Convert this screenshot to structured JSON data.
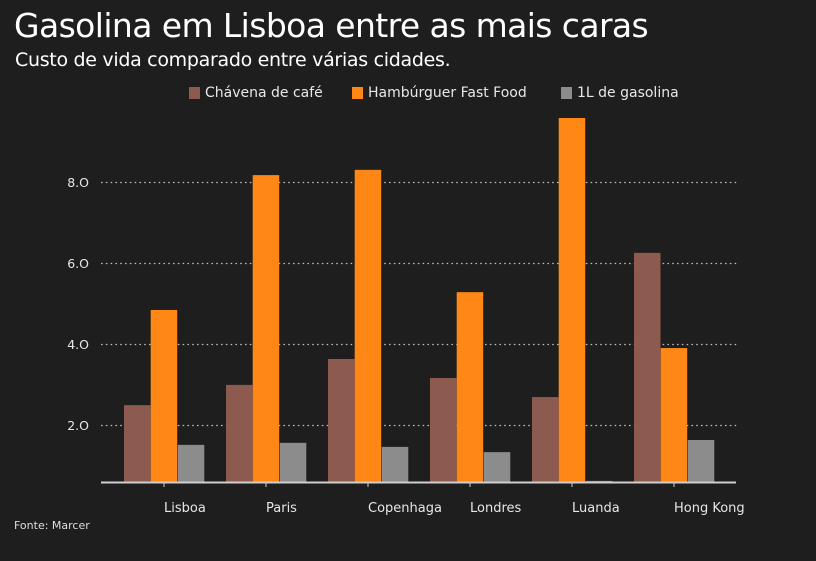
{
  "title": "Gasolina em Lisboa entre as mais caras",
  "subtitle": "Custo de vida comparado entre várias cidades.",
  "source": "Fonte: Marcer",
  "colors": {
    "background": "#1e1e1e",
    "cafe": "#8c5a4e",
    "burger": "#ff8716",
    "gas": "#8c8c8c",
    "grid": "#bdbdbd",
    "axis": "#cfcfcf"
  },
  "legend": [
    {
      "label": "Chávena de café",
      "color": "#8c5a4e"
    },
    {
      "label": "Hambúrguer Fast Food",
      "color": "#ff8716"
    },
    {
      "label": "1L de gasolina",
      "color": "#8c8c8c"
    }
  ],
  "chart_data": {
    "type": "bar",
    "title": "Gasolina em Lisboa entre as mais caras",
    "subtitle": "Custo de vida comparado entre várias cidades.",
    "xlabel": "",
    "ylabel": "",
    "categories": [
      "Lisboa",
      "Paris",
      "Copenhaga",
      "Londres",
      "Luanda",
      "Hong Kong"
    ],
    "series": [
      {
        "name": "Chávena de café",
        "color": "#8c5a4e",
        "values": [
          2.49,
          2.99,
          3.63,
          3.16,
          2.69,
          6.25
        ]
      },
      {
        "name": "Hambúrguer Fast Food",
        "color": "#ff8716",
        "values": [
          4.84,
          8.17,
          8.3,
          5.28,
          9.58,
          3.9
        ]
      },
      {
        "name": "1L de gasolina",
        "color": "#8c8c8c",
        "values": [
          1.51,
          1.56,
          1.46,
          1.33,
          0.62,
          1.63
        ]
      }
    ],
    "yticks": [
      2.0,
      4.0,
      6.0,
      8.0
    ],
    "ytick_labels": [
      "2.O",
      "4.O",
      "6.O",
      "8.O"
    ],
    "ylim": [
      0.59,
      9.8
    ],
    "grid": true,
    "grid_style": "dotted horizontal",
    "legend_position": "top-center",
    "source": "Fonte: Marcer"
  }
}
